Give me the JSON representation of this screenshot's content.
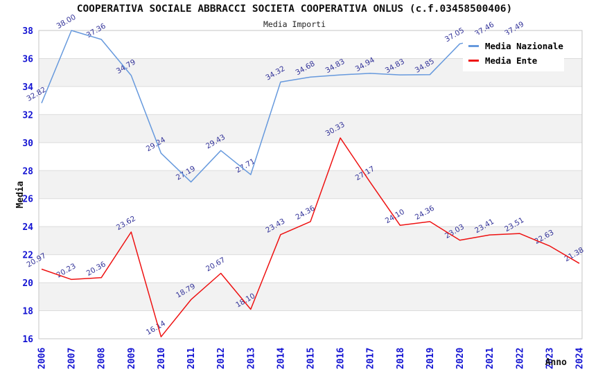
{
  "header": {
    "title": "COOPERATIVA SOCIALE ABBRACCI SOCIETA COOPERATIVA ONLUS (c.f.03458500406)",
    "subtitle": "Media Importi"
  },
  "colors": {
    "national_line": "#6699dd",
    "ente_line": "#ee1111",
    "tick_label": "#1313d2",
    "data_label": "#333399",
    "band": "#f2f2f2",
    "grid": "#dcdcdc",
    "border": "#c6c6c6",
    "axis_title": "#111111"
  },
  "chart_data": {
    "type": "line",
    "title": "COOPERATIVA SOCIALE ABBRACCI SOCIETA COOPERATIVA ONLUS (c.f.03458500406)",
    "subtitle": "Media Importi",
    "xlabel": "Anno",
    "ylabel": "Media",
    "ylim": [
      16,
      38
    ],
    "ytick_step": 2,
    "grid": true,
    "legend_position": "top-right",
    "categories": [
      2006,
      2007,
      2008,
      2009,
      2010,
      2011,
      2012,
      2013,
      2014,
      2015,
      2016,
      2017,
      2018,
      2019,
      2020,
      2021,
      2022,
      2023,
      2024
    ],
    "series": [
      {
        "name": "Media Nazionale",
        "color": "#6699dd",
        "values": [
          32.82,
          38.0,
          37.36,
          34.79,
          29.24,
          27.19,
          29.43,
          27.71,
          34.32,
          34.68,
          34.83,
          34.94,
          34.83,
          34.85,
          37.05,
          37.46,
          37.49,
          null,
          null
        ]
      },
      {
        "name": "Media Ente",
        "color": "#ee1111",
        "values": [
          20.97,
          20.23,
          20.36,
          23.62,
          16.14,
          18.79,
          20.67,
          18.1,
          23.43,
          24.36,
          30.33,
          27.17,
          24.1,
          24.36,
          23.03,
          23.41,
          23.51,
          22.63,
          21.38
        ]
      }
    ]
  }
}
